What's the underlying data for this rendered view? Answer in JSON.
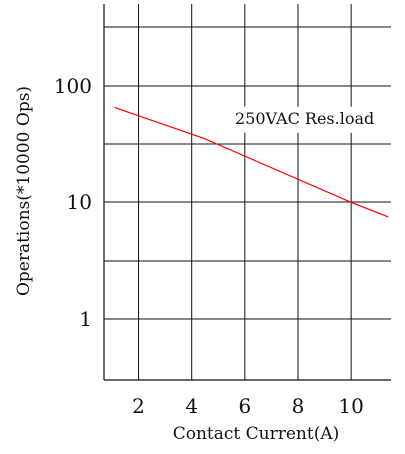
{
  "chart_data": {
    "type": "line",
    "title": "",
    "xlabel": "Contact Current(A)",
    "ylabel": "Operations(*10000 Ops)",
    "x_ticks": [
      2,
      4,
      6,
      8,
      10
    ],
    "y_ticks": [
      1,
      10,
      100
    ],
    "y_scale": "log",
    "grid": true,
    "xlim": [
      0.7,
      11.5
    ],
    "ylim": [
      0.3,
      500
    ],
    "series": [
      {
        "name": "",
        "color": "#ff0000",
        "x": [
          1.1,
          4.5,
          10,
          11.4
        ],
        "y": [
          65,
          35,
          10,
          7.5
        ]
      }
    ],
    "annotations": [
      {
        "text": "250VAC Res.load",
        "x": 8.25,
        "y": 51
      }
    ]
  }
}
